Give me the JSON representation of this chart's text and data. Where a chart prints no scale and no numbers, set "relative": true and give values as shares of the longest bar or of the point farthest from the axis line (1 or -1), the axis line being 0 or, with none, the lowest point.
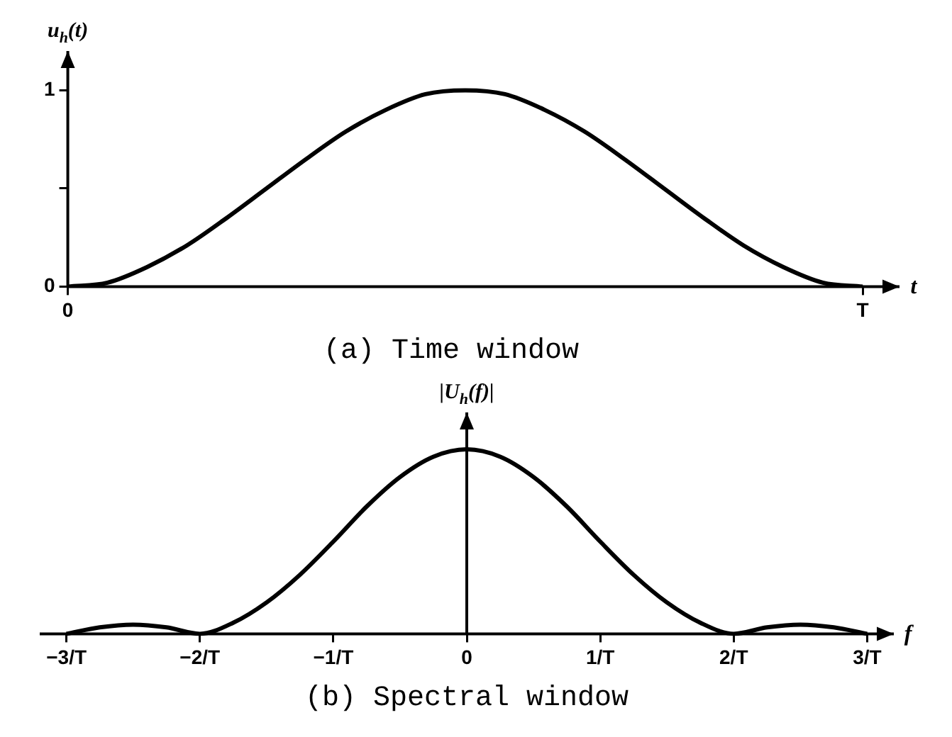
{
  "chart_data": [
    {
      "type": "line",
      "title": "(a) Time window",
      "ylabel": "u$_{h}$(t)",
      "xlabel": "t",
      "ylim": [
        0,
        1.2
      ],
      "categories": [
        "0",
        null,
        null,
        null,
        null,
        null,
        null,
        null,
        null,
        null,
        null,
        null,
        null,
        null,
        null,
        null,
        null,
        null,
        null,
        null,
        "T"
      ],
      "yticks": [
        0,
        {
          "value": 0.5,
          "label": null
        },
        1
      ],
      "series": [
        {
          "color": "#000000",
          "values": [
            0,
            0.02,
            0.1,
            0.21,
            0.35,
            0.5,
            0.65,
            0.79,
            0.9,
            0.98,
            1,
            0.98,
            0.9,
            0.79,
            0.65,
            0.5,
            0.35,
            0.21,
            0.1,
            0.02,
            0
          ]
        }
      ],
      "legend": false,
      "marker": "none",
      "line_style": "solid"
    },
    {
      "type": "line",
      "title": "(b) Spectral window",
      "ylabel": "|U$_{h}$(f)|",
      "xlabel": "f",
      "xlim": [
        -3.2,
        3.2
      ],
      "relative": true,
      "xticks": [
        {
          "value": -3,
          "label": "−3/T"
        },
        {
          "value": -2,
          "label": "−2/T"
        },
        {
          "value": -1,
          "label": "−1/T"
        },
        {
          "value": 0,
          "label": "0"
        },
        {
          "value": 1,
          "label": "1/T"
        },
        {
          "value": 2,
          "label": "2/T"
        },
        {
          "value": 3,
          "label": "3/T"
        }
      ],
      "x": [
        -3,
        -2.75,
        -2.5,
        -2.25,
        -2,
        -1.75,
        -1.5,
        -1.25,
        -1,
        -0.75,
        -0.5,
        -0.25,
        0,
        0.25,
        0.5,
        0.75,
        1,
        1.25,
        1.5,
        1.75,
        2,
        2.25,
        2.5,
        2.75,
        3
      ],
      "series": [
        {
          "color": "#000000",
          "values": [
            0,
            0.035,
            0.05,
            0.035,
            0,
            0.06,
            0.17,
            0.32,
            0.5,
            0.69,
            0.85,
            0.96,
            1,
            0.96,
            0.85,
            0.69,
            0.5,
            0.32,
            0.17,
            0.06,
            0,
            0.035,
            0.05,
            0.035,
            0
          ]
        }
      ],
      "legend": false,
      "marker": "none",
      "line_style": "solid"
    }
  ]
}
